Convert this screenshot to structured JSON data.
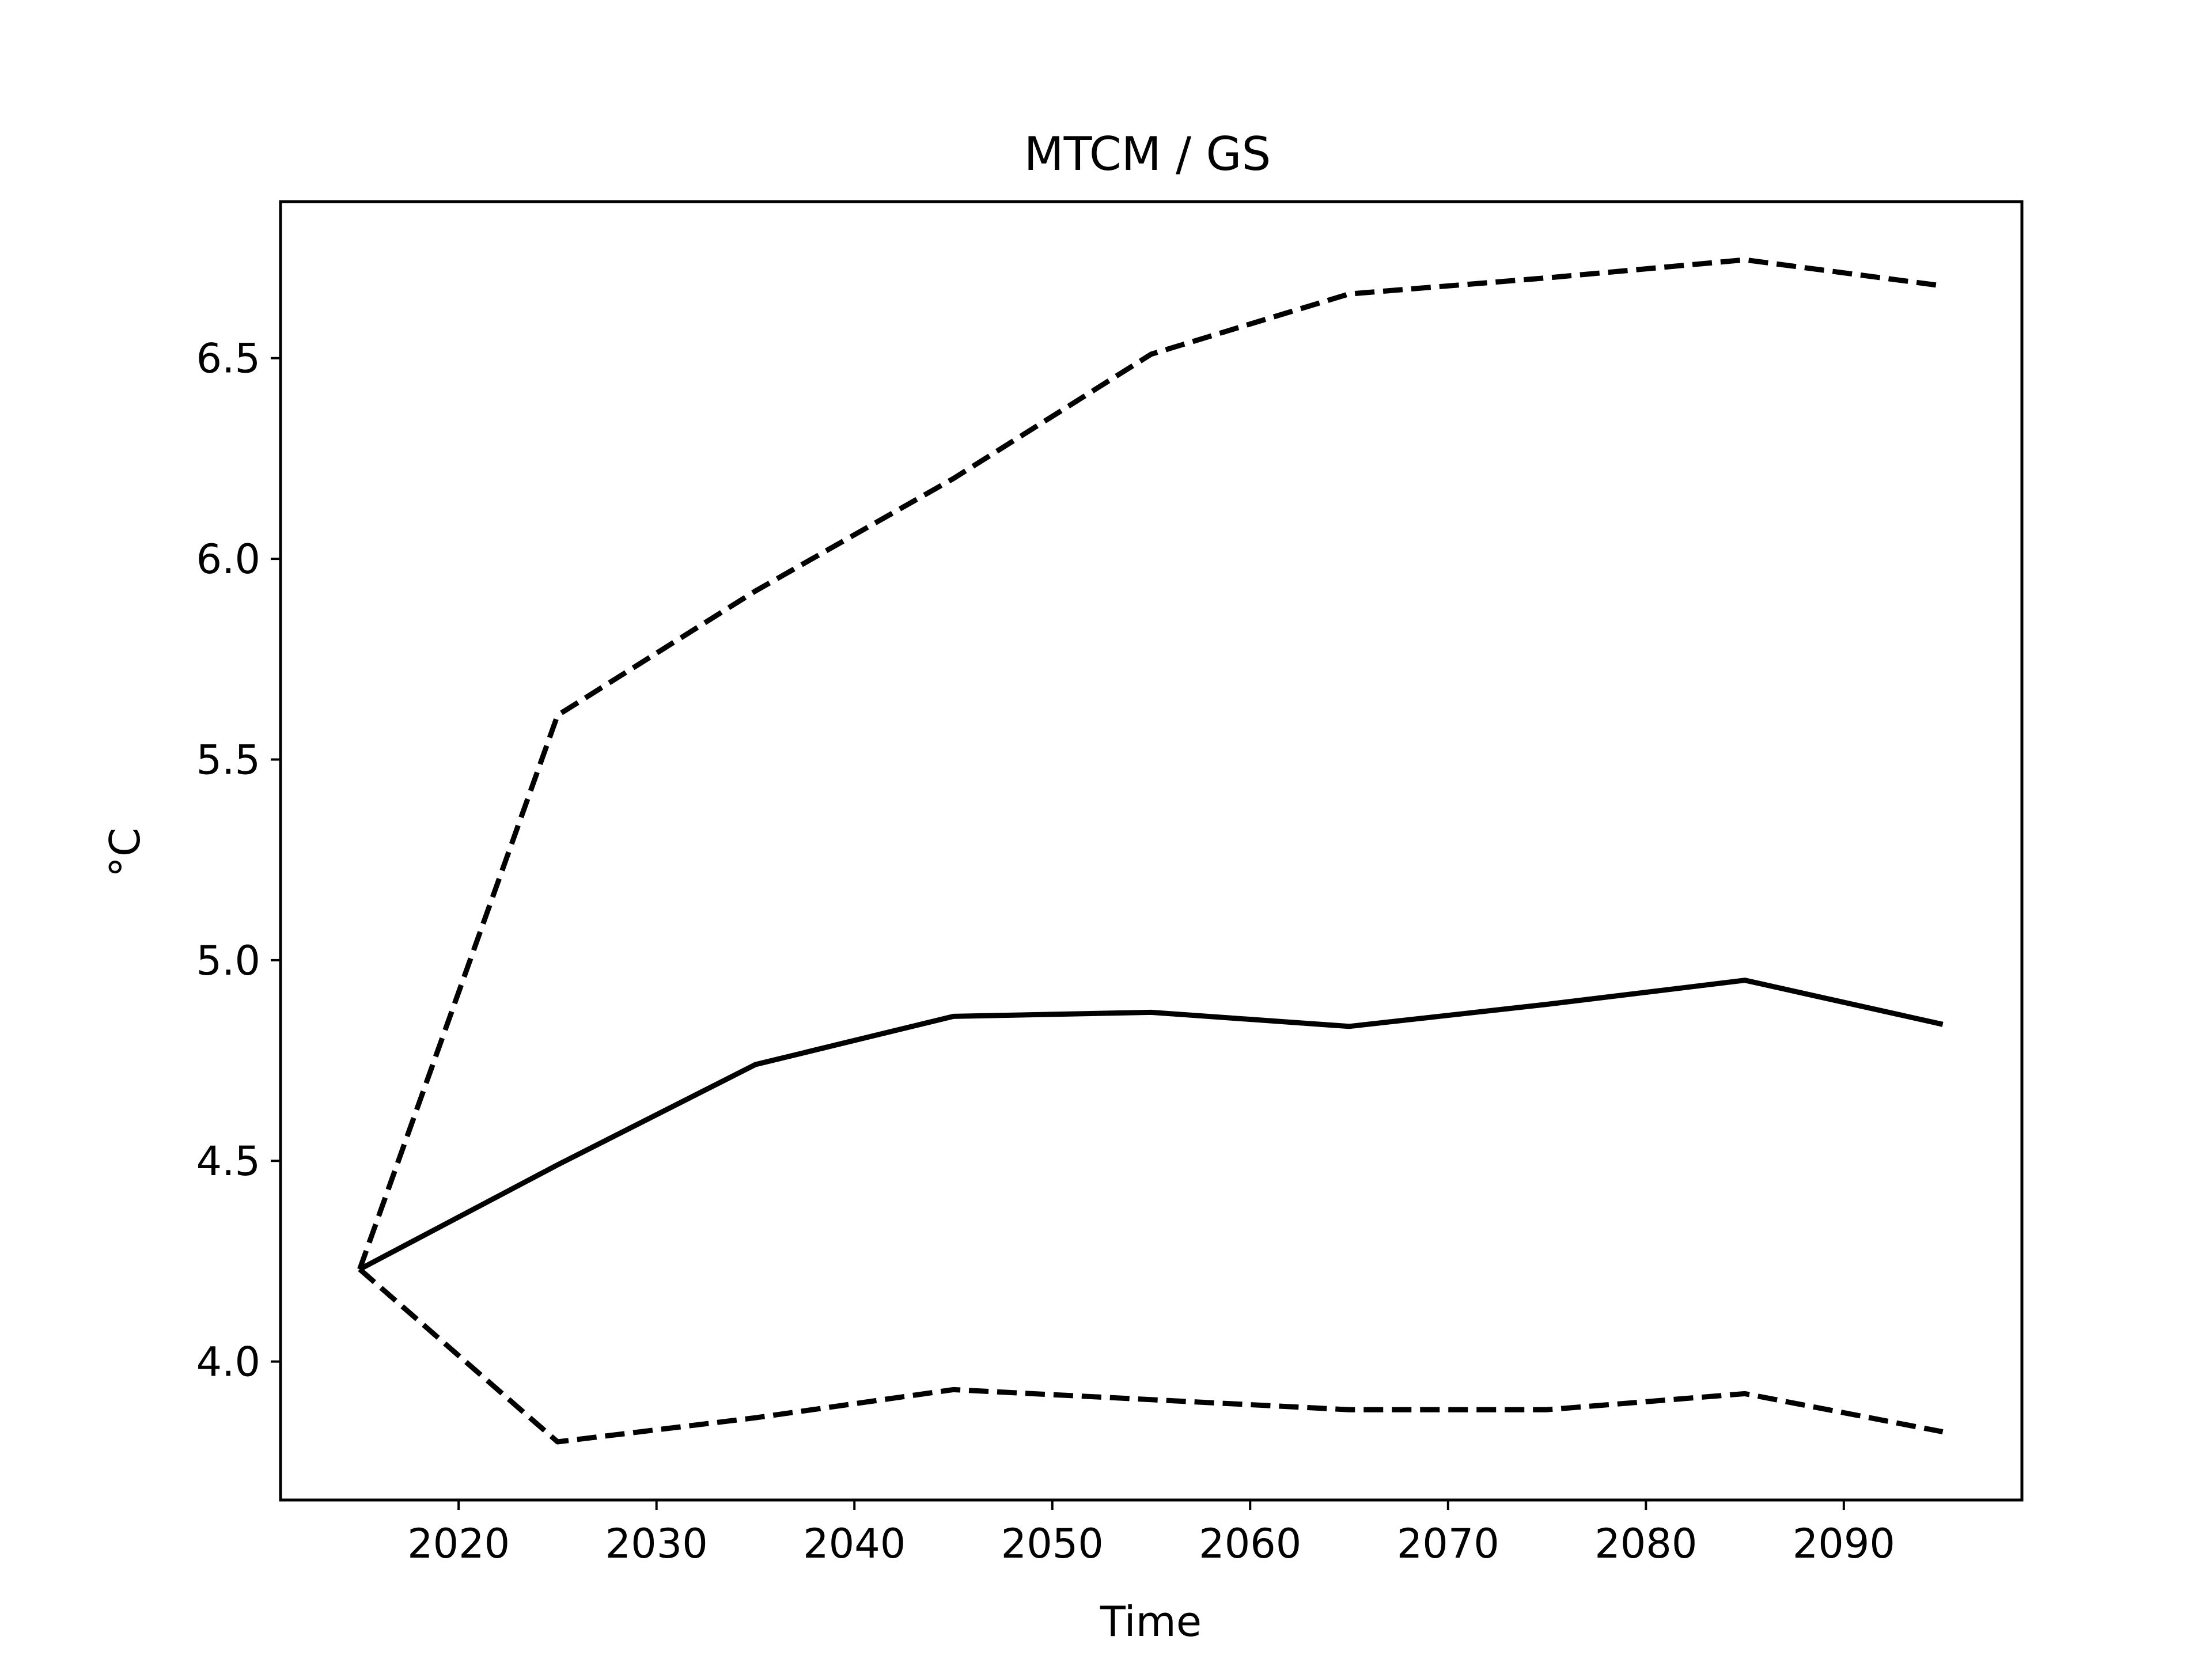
{
  "chart_data": {
    "type": "line",
    "title": "MTCM / GS",
    "xlabel": "Time",
    "ylabel": "°C",
    "xlim": [
      2011,
      2099
    ],
    "ylim": [
      3.655,
      6.89
    ],
    "grid": false,
    "xticks": [
      2020,
      2030,
      2040,
      2050,
      2060,
      2070,
      2080,
      2090
    ],
    "xtick_labels": [
      "2020",
      "2030",
      "2040",
      "2050",
      "2060",
      "2070",
      "2080",
      "2090"
    ],
    "yticks": [
      4.0,
      4.5,
      5.0,
      5.5,
      6.0,
      6.5
    ],
    "ytick_labels": [
      "4.0",
      "4.5",
      "5.0",
      "5.5",
      "6.0",
      "6.5"
    ],
    "x": [
      2015,
      2025,
      2035,
      2045,
      2055,
      2065,
      2075,
      2085,
      2095
    ],
    "series": [
      {
        "style": "solid",
        "color": "#000000",
        "values": [
          4.23,
          4.49,
          4.74,
          4.86,
          4.87,
          4.835,
          4.89,
          4.95,
          4.84
        ]
      },
      {
        "style": "dashed",
        "color": "#000000",
        "values": [
          4.23,
          5.61,
          5.92,
          6.2,
          6.51,
          6.66,
          6.7,
          6.745,
          6.68
        ]
      },
      {
        "style": "dashed",
        "color": "#000000",
        "values": [
          4.23,
          3.8,
          3.86,
          3.93,
          3.905,
          3.88,
          3.88,
          3.92,
          3.825
        ]
      }
    ]
  }
}
